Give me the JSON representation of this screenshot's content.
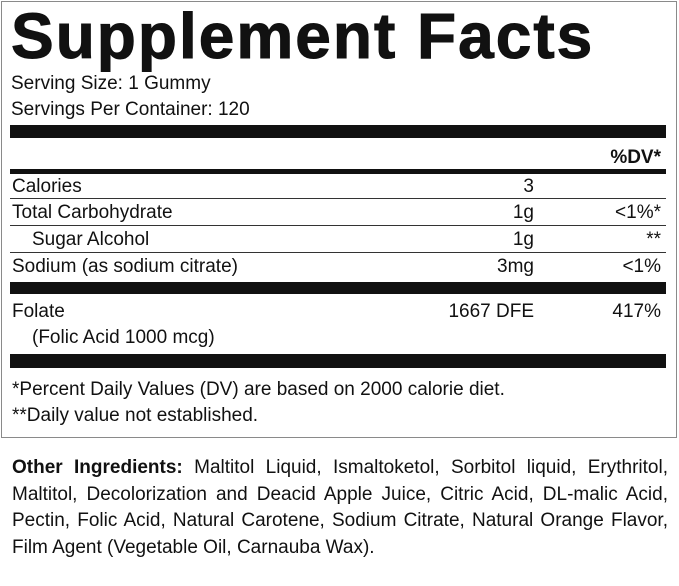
{
  "title": "Supplement Facts",
  "serving_size": "Serving Size: 1 Gummy",
  "servings_per_container": "Servings Per Container: 120",
  "dv_header": "%DV*",
  "rows": [
    {
      "name": "Calories",
      "amount": "3",
      "dv": ""
    },
    {
      "name": "Total Carbohydrate",
      "amount": "1g",
      "dv": "<1%*"
    },
    {
      "name": "Sugar Alcohol",
      "amount": "1g",
      "dv": "**"
    },
    {
      "name": "Sodium (as sodium citrate)",
      "amount": "3mg",
      "dv": "<1%"
    }
  ],
  "folate": {
    "name": "Folate",
    "sub": "(Folic Acid 1000 mcg)",
    "amount": "1667 DFE",
    "dv": "417%"
  },
  "footnotes": [
    "*Percent Daily Values (DV) are based on 2000 calorie diet.",
    "**Daily value not established."
  ],
  "other_ingredients": {
    "label": "Other Ingredients:",
    "text": "Maltitol Liquid, Ismaltoketol, Sorbitol liquid, Erythritol, Maltitol, Decolorization and Deacid Apple Juice, Citric Acid, DL-malic Acid, Pectin, Folic Acid, Natural Carotene, Sodium Citrate, Natural Orange Flavor, Film Agent (Vegetable Oil, Carnauba Wax)."
  }
}
